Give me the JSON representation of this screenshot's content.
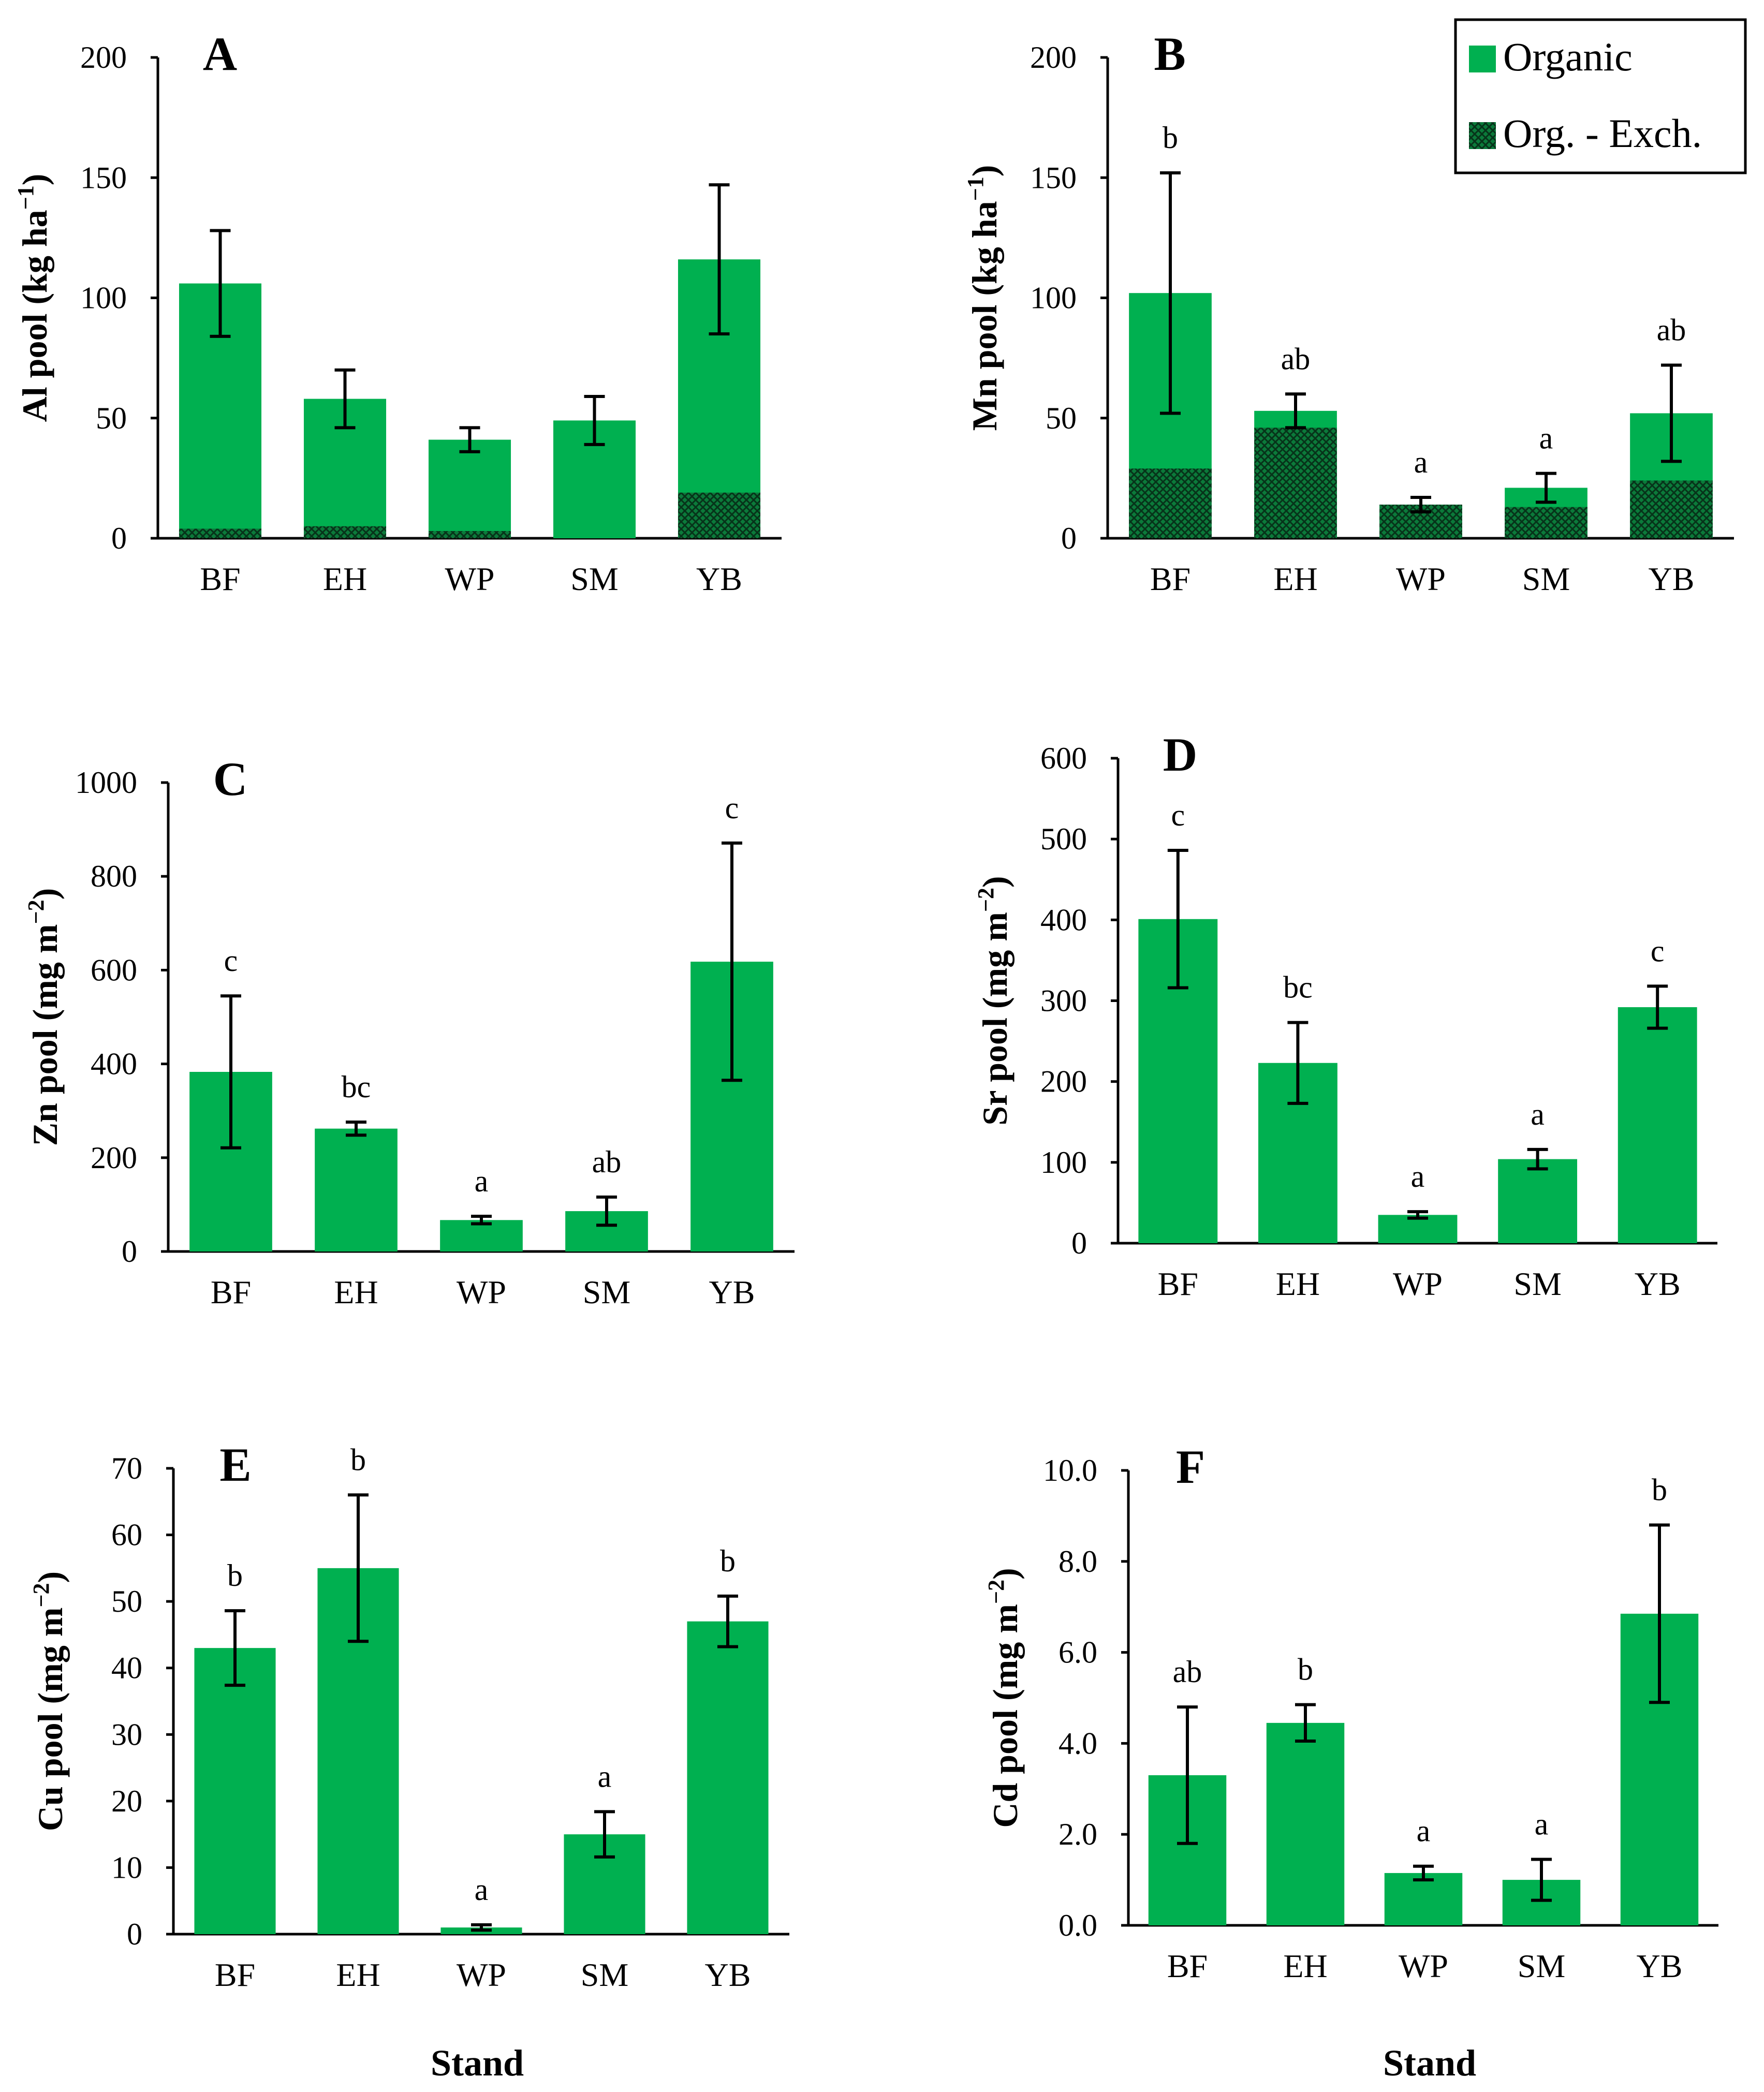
{
  "colors": {
    "organic": "#00B050",
    "exch_hatch": "#145c30",
    "axis": "#000000"
  },
  "legend": {
    "organic": "Organic",
    "exchangeable": "Org. - Exch."
  },
  "x_axis_title": "Stand",
  "chart_data": [
    {
      "panel": "A",
      "type": "bar",
      "ylabel_main": "Al pool (kg ha",
      "ylabel_sup": "−1",
      "ylabel_end": ")",
      "categories": [
        "BF",
        "EH",
        "WP",
        "SM",
        "YB"
      ],
      "ylim": [
        0,
        200
      ],
      "yticks": [
        "0",
        "50",
        "100",
        "150",
        "200"
      ],
      "series": [
        {
          "name": "Organic",
          "values": [
            106,
            58,
            41,
            49,
            116
          ],
          "errors": [
            22,
            12,
            5,
            10,
            31
          ]
        },
        {
          "name": "Org. - Exch.",
          "values": [
            4,
            5,
            3,
            0,
            19
          ]
        }
      ],
      "sig": [
        "",
        "",
        "",
        "",
        ""
      ]
    },
    {
      "panel": "B",
      "type": "bar",
      "ylabel_main": "Mn pool (kg ha",
      "ylabel_sup": "−1",
      "ylabel_end": ")",
      "categories": [
        "BF",
        "EH",
        "WP",
        "SM",
        "YB"
      ],
      "ylim": [
        0,
        200
      ],
      "yticks": [
        "0",
        "50",
        "100",
        "150",
        "200"
      ],
      "series": [
        {
          "name": "Organic",
          "values": [
            102,
            53,
            14,
            21,
            52
          ],
          "errors": [
            50,
            7,
            3,
            6,
            20
          ]
        },
        {
          "name": "Org. - Exch.",
          "values": [
            29,
            46,
            14,
            13,
            24
          ]
        }
      ],
      "sig": [
        "b",
        "ab",
        "a",
        "a",
        "ab"
      ]
    },
    {
      "panel": "C",
      "type": "bar",
      "ylabel_main": "Zn pool (mg m",
      "ylabel_sup": "−2",
      "ylabel_end": ")",
      "categories": [
        "BF",
        "EH",
        "WP",
        "SM",
        "YB"
      ],
      "ylim": [
        0,
        1000
      ],
      "yticks": [
        "0",
        "200",
        "400",
        "600",
        "800",
        "1000"
      ],
      "series": [
        {
          "name": "Organic",
          "values": [
            383,
            262,
            67,
            86,
            618
          ],
          "errors": [
            162,
            14,
            8,
            30,
            253
          ]
        }
      ],
      "sig": [
        "c",
        "bc",
        "a",
        "ab",
        "c"
      ]
    },
    {
      "panel": "D",
      "type": "bar",
      "ylabel_main": "Sr pool (mg m",
      "ylabel_sup": "−2",
      "ylabel_end": ")",
      "categories": [
        "BF",
        "EH",
        "WP",
        "SM",
        "YB"
      ],
      "ylim": [
        0,
        600
      ],
      "yticks": [
        "0",
        "100",
        "200",
        "300",
        "400",
        "500",
        "600"
      ],
      "series": [
        {
          "name": "Organic",
          "values": [
            401,
            223,
            35,
            104,
            292
          ],
          "errors": [
            85,
            50,
            4,
            12,
            26
          ]
        }
      ],
      "sig": [
        "c",
        "bc",
        "a",
        "a",
        "c"
      ]
    },
    {
      "panel": "E",
      "type": "bar",
      "ylabel_main": "Cu pool (mg m",
      "ylabel_sup": "−2",
      "ylabel_end": ")",
      "categories": [
        "BF",
        "EH",
        "WP",
        "SM",
        "YB"
      ],
      "ylim": [
        0,
        70
      ],
      "yticks": [
        "0",
        "10",
        "20",
        "30",
        "40",
        "50",
        "60",
        "70"
      ],
      "series": [
        {
          "name": "Organic",
          "values": [
            43,
            55,
            1,
            15,
            47
          ],
          "errors": [
            5.6,
            11,
            0.4,
            3.4,
            3.8
          ]
        }
      ],
      "sig": [
        "b",
        "b",
        "a",
        "a",
        "b"
      ]
    },
    {
      "panel": "F",
      "type": "bar",
      "ylabel_main": "Cd pool (mg m",
      "ylabel_sup": "−2",
      "ylabel_end": ")",
      "categories": [
        "BF",
        "EH",
        "WP",
        "SM",
        "YB"
      ],
      "ylim": [
        0,
        10
      ],
      "yticks": [
        "0.0",
        "2.0",
        "4.0",
        "6.0",
        "8.0",
        "10.0"
      ],
      "series": [
        {
          "name": "Organic",
          "values": [
            3.3,
            4.45,
            1.15,
            1.0,
            6.85
          ],
          "errors": [
            1.5,
            0.4,
            0.15,
            0.45,
            1.95
          ]
        }
      ],
      "sig": [
        "ab",
        "b",
        "a",
        "a",
        "b"
      ]
    }
  ]
}
